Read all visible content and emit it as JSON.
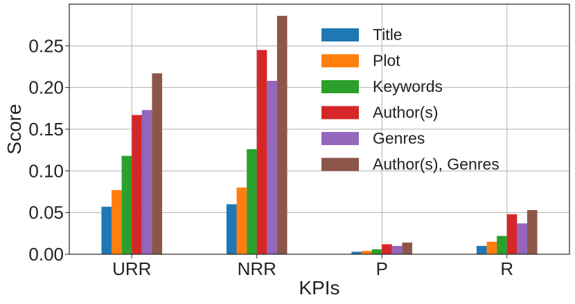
{
  "chart_data": {
    "type": "bar",
    "title": "",
    "xlabel": "KPIs",
    "ylabel": "Score",
    "categories": [
      "URR",
      "NRR",
      "P",
      "R"
    ],
    "ylim": [
      0,
      0.3
    ],
    "yticks": [
      "0.00",
      "0.05",
      "0.10",
      "0.15",
      "0.20",
      "0.25"
    ],
    "grid": true,
    "legend_position": "top-right",
    "series": [
      {
        "name": "Title",
        "color": "#1f77b4",
        "values": [
          0.057,
          0.06,
          0.003,
          0.01
        ]
      },
      {
        "name": "Plot",
        "color": "#ff7f0e",
        "values": [
          0.077,
          0.08,
          0.004,
          0.015
        ]
      },
      {
        "name": "Keywords",
        "color": "#2ca02c",
        "values": [
          0.118,
          0.126,
          0.006,
          0.022
        ]
      },
      {
        "name": "Author(s)",
        "color": "#d62728",
        "values": [
          0.167,
          0.245,
          0.012,
          0.048
        ]
      },
      {
        "name": "Genres",
        "color": "#9467bd",
        "values": [
          0.173,
          0.208,
          0.01,
          0.037
        ]
      },
      {
        "name": "Author(s), Genres",
        "color": "#8c564b",
        "values": [
          0.217,
          0.286,
          0.014,
          0.053
        ]
      }
    ]
  }
}
